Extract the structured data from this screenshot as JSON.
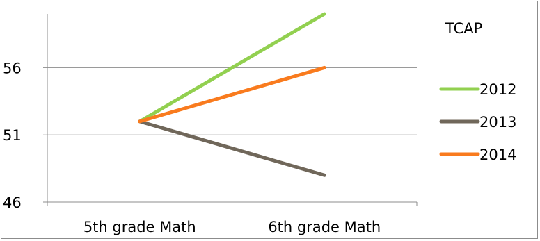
{
  "chart_data": {
    "type": "line",
    "title": "",
    "xlabel": "",
    "ylabel": "",
    "categories": [
      "5th grade Math",
      "6th grade Math"
    ],
    "ylim": [
      46,
      60
    ],
    "yticks": [
      "46",
      "51",
      "56"
    ],
    "grid": true,
    "legend": {
      "title": "TCAP",
      "placement": "right"
    },
    "series": [
      {
        "name": "2012",
        "color": "#92d050",
        "values": [
          52,
          60
        ]
      },
      {
        "name": "2013",
        "color": "#70675a",
        "values": [
          52,
          48
        ]
      },
      {
        "name": "2014",
        "color": "#f97b1e",
        "values": [
          52,
          56
        ]
      }
    ]
  }
}
